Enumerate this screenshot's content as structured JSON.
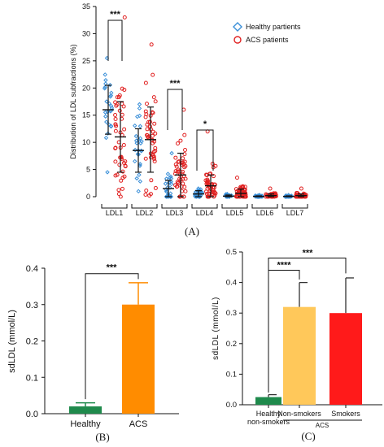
{
  "chart_data": [
    {
      "panel": "(A)",
      "type": "scatter",
      "ylabel": "Distribution of LDL subfractions (%)",
      "ylim": [
        0,
        35
      ],
      "yticks": [
        "0",
        "5",
        "10",
        "15",
        "20",
        "25",
        "30",
        "35"
      ],
      "categories": [
        "LDL1",
        "LDL2",
        "LDL3",
        "LDL4",
        "LDL5",
        "LDL6",
        "LDL7"
      ],
      "series": [
        {
          "name": "Healthy partients",
          "color": "#3a8fd8",
          "marker": "diamond",
          "mean": [
            16.0,
            8.5,
            1.5,
            0.5,
            0.1,
            0.05,
            0.05
          ],
          "sd": [
            4.5,
            4.0,
            1.5,
            0.6,
            0.2,
            0.1,
            0.1
          ],
          "min": [
            4.5,
            1.0,
            0.0,
            0.0,
            0.0,
            0.0,
            0.0
          ],
          "max": [
            25.5,
            17.0,
            8.0,
            1.5,
            0.5,
            0.3,
            0.3
          ]
        },
        {
          "name": "ACS patients",
          "color": "#e02020",
          "marker": "circle",
          "mean": [
            11.0,
            10.5,
            4.0,
            2.0,
            0.6,
            0.2,
            0.2
          ],
          "sd": [
            6.5,
            6.0,
            4.0,
            2.0,
            0.8,
            0.3,
            0.3
          ],
          "min": [
            0.5,
            0.5,
            0.0,
            0.0,
            0.0,
            0.0,
            0.0
          ],
          "max": [
            33.0,
            28.0,
            16.0,
            12.0,
            3.5,
            1.5,
            1.5
          ]
        }
      ],
      "significance": [
        {
          "category": "LDL1",
          "label": "***"
        },
        {
          "category": "LDL3",
          "label": "***"
        },
        {
          "category": "LDL4",
          "label": "*"
        }
      ]
    },
    {
      "panel": "(B)",
      "type": "bar",
      "ylabel": "sdLDL (mmol/L)",
      "ylim": [
        0,
        0.4
      ],
      "yticks": [
        "0.0",
        "0.1",
        "0.2",
        "0.3",
        "0.4"
      ],
      "categories": [
        "Healthy",
        "ACS"
      ],
      "values": [
        0.02,
        0.3
      ],
      "errors": [
        0.01,
        0.06
      ],
      "colors": [
        "#1f8a4c",
        "#ff8c00"
      ],
      "significance": {
        "label": "***"
      }
    },
    {
      "panel": "(C)",
      "type": "bar",
      "ylabel": "sdLDL (mmol/L)",
      "ylim": [
        0,
        0.5
      ],
      "yticks": [
        "0.0",
        "0.1",
        "0.2",
        "0.3",
        "0.4",
        "0.5"
      ],
      "categories": [
        [
          "Healthy",
          "non-smokers"
        ],
        [
          "Non-smokers"
        ],
        [
          "Smokers"
        ]
      ],
      "group_label": "ACS",
      "values": [
        0.025,
        0.32,
        0.3
      ],
      "errors": [
        0.008,
        0.08,
        0.115
      ],
      "colors": [
        "#1f8a4c",
        "#ffc85a",
        "#ff1a1a"
      ],
      "significance": [
        {
          "label": "****",
          "to": 1
        },
        {
          "label": "***",
          "to": 2
        }
      ]
    }
  ]
}
